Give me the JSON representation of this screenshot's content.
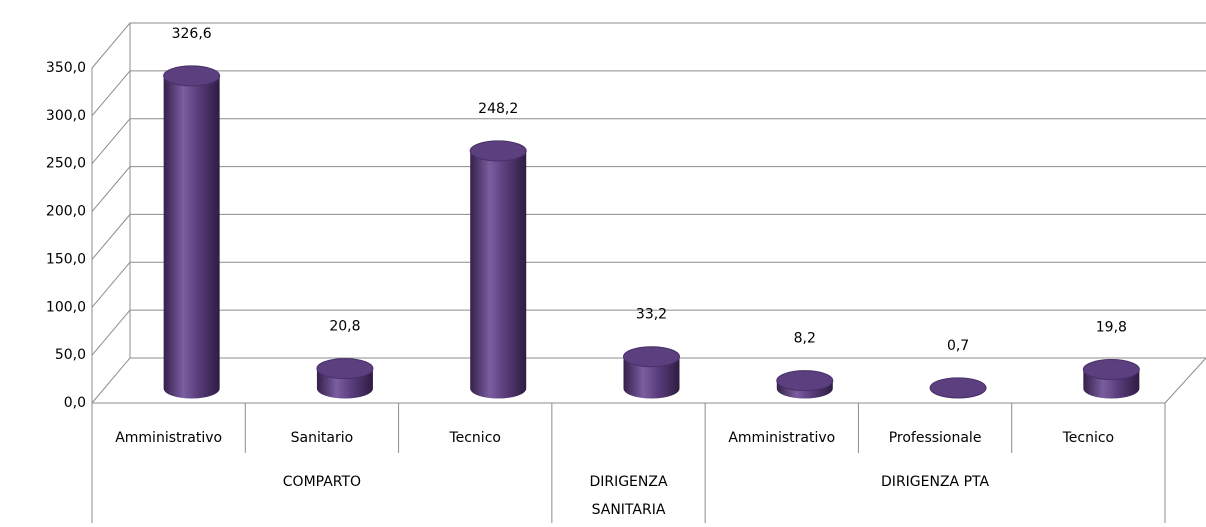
{
  "chart_data": {
    "type": "bar3d",
    "categories": [
      "Amministrativo",
      "Sanitario",
      "Tecnico",
      null,
      "Amministrativo",
      "Professionale",
      "Tecnico"
    ],
    "groups": [
      "COMPARTO",
      "COMPARTO",
      "COMPARTO",
      "DIRIGENZA SANITARIA",
      "DIRIGENZA PTA",
      "DIRIGENZA PTA",
      "DIRIGENZA PTA"
    ],
    "values": [
      326.6,
      20.8,
      248.2,
      33.2,
      8.2,
      0.7,
      19.8
    ],
    "value_labels": [
      "326,6",
      "20,8",
      "248,2",
      "33,2",
      "8,2",
      "0,7",
      "19,8"
    ],
    "color": "#5b3f7e",
    "ylim": [
      0,
      350
    ],
    "yticks": [
      {
        "value": 0,
        "label": "0,0"
      },
      {
        "value": 50,
        "label": "50,0"
      },
      {
        "value": 100,
        "label": "100,0"
      },
      {
        "value": 150,
        "label": "150,0"
      },
      {
        "value": 200,
        "label": "200,0"
      },
      {
        "value": 250,
        "label": "250,0"
      },
      {
        "value": 300,
        "label": "300,0"
      },
      {
        "value": 350,
        "label": "350,0"
      }
    ],
    "grid": true
  }
}
